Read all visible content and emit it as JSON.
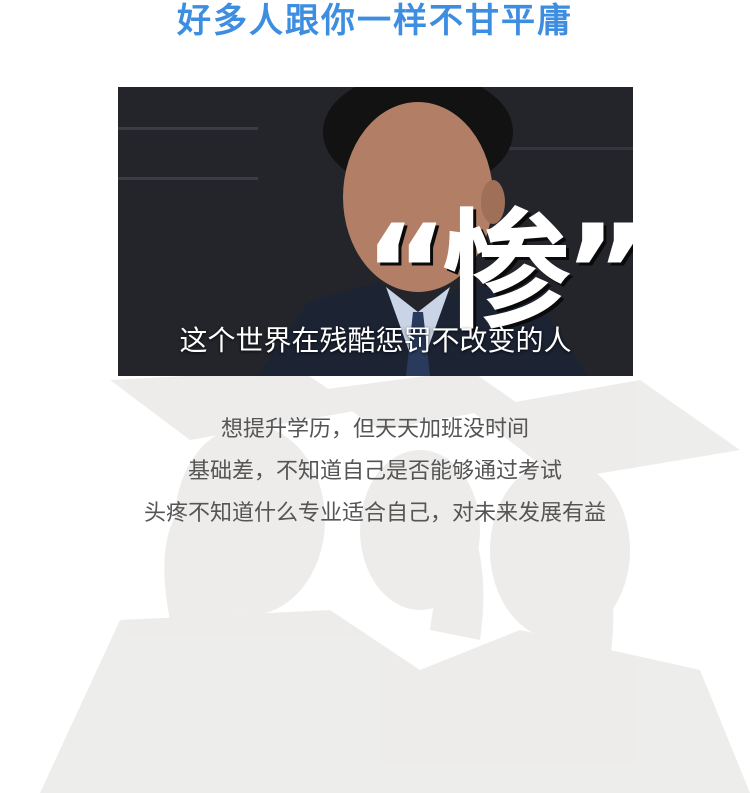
{
  "header": {
    "title": "好多人跟你一样不甘平庸"
  },
  "hero": {
    "big_text": "“惨”",
    "caption": "这个世界在残酷惩罚不改变的人"
  },
  "pain_points": [
    "想提升学历，但天天加班没时间",
    "基础差，不知道自己是否能够通过考试",
    "头疼不知道什么专业适合自己，对未来发展有益"
  ]
}
